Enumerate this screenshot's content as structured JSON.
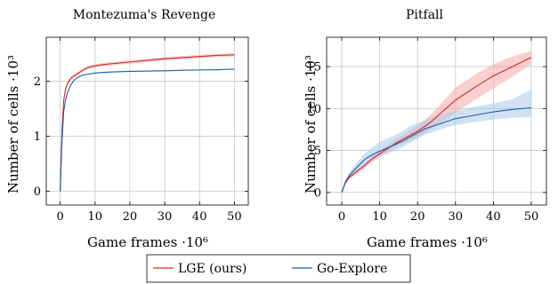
{
  "chart_data": [
    {
      "type": "line",
      "title": "Montezuma's Revenge",
      "xlabel": "Game frames ·10⁶",
      "ylabel": "Number of cells ·10³",
      "xlim": [
        -4,
        54
      ],
      "ylim": [
        -0.25,
        2.8
      ],
      "xticks": [
        0,
        10,
        20,
        30,
        40,
        50
      ],
      "yticks": [
        0,
        1,
        2
      ],
      "grid": true,
      "series": [
        {
          "name": "LGE (ours)",
          "color": "#d62728",
          "band_color": "#f4a7a8",
          "x": [
            0,
            0.5,
            1,
            1.5,
            2,
            3,
            4,
            5,
            6,
            7,
            8,
            10,
            12,
            15,
            20,
            25,
            30,
            35,
            40,
            45,
            50
          ],
          "y": [
            0,
            1.1,
            1.65,
            1.85,
            1.95,
            2.05,
            2.1,
            2.14,
            2.18,
            2.22,
            2.25,
            2.28,
            2.3,
            2.32,
            2.35,
            2.38,
            2.41,
            2.43,
            2.45,
            2.47,
            2.48
          ],
          "lower": [
            0,
            1.08,
            1.62,
            1.82,
            1.92,
            2.02,
            2.07,
            2.11,
            2.15,
            2.19,
            2.22,
            2.25,
            2.27,
            2.29,
            2.32,
            2.35,
            2.38,
            2.4,
            2.42,
            2.44,
            2.45
          ],
          "upper": [
            0,
            1.12,
            1.68,
            1.88,
            1.98,
            2.08,
            2.13,
            2.17,
            2.21,
            2.25,
            2.28,
            2.31,
            2.33,
            2.35,
            2.38,
            2.41,
            2.44,
            2.46,
            2.48,
            2.5,
            2.51
          ]
        },
        {
          "name": "Go-Explore",
          "color": "#1f5ea8",
          "band_color": "#a9c8e8",
          "x": [
            0,
            0.5,
            1,
            1.5,
            2,
            3,
            4,
            5,
            6,
            7,
            8,
            10,
            12,
            15,
            20,
            25,
            30,
            35,
            40,
            45,
            50
          ],
          "y": [
            0,
            0.9,
            1.45,
            1.65,
            1.78,
            1.93,
            2.02,
            2.07,
            2.1,
            2.12,
            2.13,
            2.15,
            2.16,
            2.17,
            2.18,
            2.185,
            2.19,
            2.2,
            2.205,
            2.21,
            2.22
          ],
          "lower": [
            0,
            0.89,
            1.44,
            1.64,
            1.77,
            1.92,
            2.01,
            2.06,
            2.09,
            2.11,
            2.12,
            2.14,
            2.15,
            2.16,
            2.17,
            2.175,
            2.18,
            2.19,
            2.195,
            2.2,
            2.21
          ],
          "upper": [
            0,
            0.91,
            1.46,
            1.66,
            1.79,
            1.94,
            2.03,
            2.08,
            2.11,
            2.13,
            2.14,
            2.16,
            2.17,
            2.18,
            2.19,
            2.195,
            2.2,
            2.21,
            2.215,
            2.22,
            2.23
          ]
        }
      ]
    },
    {
      "type": "line",
      "title": "Pitfall",
      "xlabel": "Game frames ·10⁶",
      "ylabel": "Number of cells ·10³",
      "xlim": [
        -4,
        54
      ],
      "ylim": [
        -1.5,
        18.5
      ],
      "xticks": [
        0,
        10,
        20,
        30,
        40,
        50
      ],
      "yticks": [
        0,
        5,
        10,
        15
      ],
      "grid": true,
      "series": [
        {
          "name": "LGE (ours)",
          "color": "#d62728",
          "band_color": "#f4a7a8",
          "x": [
            0,
            1,
            2,
            4,
            6,
            8,
            10,
            12,
            14,
            16,
            18,
            20,
            22,
            24,
            26,
            28,
            30,
            35,
            40,
            45,
            50
          ],
          "y": [
            0,
            1.2,
            1.8,
            2.5,
            3.2,
            4.0,
            4.6,
            5.2,
            5.8,
            6.3,
            6.8,
            7.3,
            7.9,
            8.6,
            9.4,
            10.2,
            11.0,
            12.5,
            13.9,
            15.0,
            16.1
          ],
          "lower": [
            0,
            1.0,
            1.6,
            2.2,
            2.9,
            3.6,
            4.2,
            4.8,
            5.3,
            5.8,
            6.2,
            6.6,
            7.1,
            7.7,
            8.3,
            8.9,
            9.5,
            11.0,
            12.4,
            13.8,
            15.3
          ],
          "upper": [
            0,
            1.4,
            2.0,
            2.8,
            3.5,
            4.4,
            5.0,
            5.6,
            6.3,
            6.8,
            7.4,
            8.0,
            8.7,
            9.5,
            10.5,
            11.5,
            12.5,
            14.0,
            15.3,
            16.2,
            16.9
          ]
        },
        {
          "name": "Go-Explore",
          "color": "#1f5ea8",
          "band_color": "#a9c8e8",
          "x": [
            0,
            1,
            2,
            4,
            6,
            8,
            10,
            12,
            14,
            16,
            18,
            20,
            22,
            24,
            26,
            28,
            30,
            35,
            40,
            45,
            50
          ],
          "y": [
            0,
            1.3,
            2.0,
            3.0,
            3.9,
            4.5,
            4.9,
            5.3,
            5.7,
            6.1,
            6.6,
            7.1,
            7.6,
            7.9,
            8.2,
            8.5,
            8.8,
            9.2,
            9.6,
            9.9,
            10.1
          ],
          "lower": [
            0,
            1.0,
            1.6,
            2.4,
            3.2,
            3.8,
            4.2,
            4.6,
            5.0,
            5.4,
            5.9,
            6.4,
            6.9,
            7.2,
            7.5,
            7.8,
            8.0,
            8.4,
            8.7,
            8.9,
            9.0
          ],
          "upper": [
            0,
            1.6,
            2.4,
            3.6,
            4.6,
            5.4,
            6.0,
            6.4,
            6.8,
            7.3,
            7.9,
            8.3,
            8.6,
            8.9,
            9.2,
            9.5,
            9.7,
            10.2,
            10.6,
            11.1,
            12.3
          ]
        }
      ]
    }
  ],
  "legend": {
    "items": [
      {
        "label": "LGE (ours)",
        "color": "#d62728"
      },
      {
        "label": "Go-Explore",
        "color": "#1f5ea8"
      }
    ]
  }
}
